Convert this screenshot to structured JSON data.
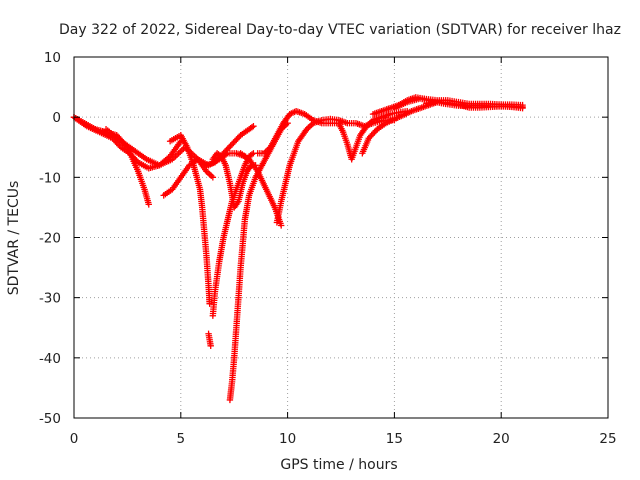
{
  "chart_data": {
    "type": "scatter",
    "title": "Day 322 of 2022, Sidereal Day-to-day VTEC variation (SDTVAR) for receiver lhaz",
    "xlabel": "GPS time / hours",
    "ylabel": "SDTVAR / TECUs",
    "xlim": [
      0,
      25
    ],
    "ylim": [
      -50,
      10
    ],
    "x_ticks": [
      0,
      5,
      10,
      15,
      20,
      25
    ],
    "y_ticks": [
      -50,
      -40,
      -30,
      -20,
      -10,
      0,
      10
    ],
    "x_tick_labels": [
      "0",
      "5",
      "10",
      "15",
      "20",
      "25"
    ],
    "y_tick_labels": [
      "-50",
      "-40",
      "-30",
      "-20",
      "-10",
      "0",
      "10"
    ],
    "grid": true,
    "marker": "+",
    "series": [
      {
        "name": "SDTVAR",
        "color": "#ff0000",
        "tracks": [
          {
            "x": [
              0,
              0.5,
              1.0,
              1.5,
              2.0,
              2.5,
              3.0,
              3.3,
              3.5
            ],
            "y": [
              0,
              -1,
              -2,
              -2.5,
              -3,
              -5,
              -9,
              -12,
              -14.5
            ]
          },
          {
            "x": [
              0,
              0.6,
              1.2,
              1.8,
              2.2,
              2.6,
              3.0,
              3.5,
              4.0,
              4.5,
              5.0
            ],
            "y": [
              0,
              -1.5,
              -2.5,
              -3.5,
              -5,
              -6,
              -7.5,
              -8.5,
              -8,
              -6.5,
              -4
            ]
          },
          {
            "x": [
              1.5,
              2.2,
              2.8,
              3.4,
              4.0,
              4.6,
              5.2,
              5.8,
              6.2,
              6.5
            ],
            "y": [
              -2,
              -4,
              -5.5,
              -7,
              -8,
              -7,
              -5,
              -7,
              -9,
              -10
            ]
          },
          {
            "x": [
              4.2,
              4.6,
              5.0,
              5.4,
              5.8,
              6.3,
              6.8,
              7.2,
              7.6,
              8.0
            ],
            "y": [
              -13,
              -12,
              -10,
              -8,
              -7,
              -8,
              -7,
              -6,
              -6,
              -6.5
            ]
          },
          {
            "x": [
              4.5,
              5.0,
              5.3,
              5.6,
              5.9,
              6.0,
              6.1,
              6.2,
              6.3,
              6.35
            ],
            "y": [
              -4,
              -3,
              -5,
              -8,
              -12,
              -15,
              -19,
              -23,
              -28,
              -31
            ]
          },
          {
            "x": [
              6.3,
              6.35,
              6.4
            ],
            "y": [
              -36,
              -37,
              -38
            ]
          },
          {
            "x": [
              5.8,
              6.2,
              6.6,
              7.0,
              7.4,
              7.8,
              8.2,
              8.4
            ],
            "y": [
              -7,
              -8,
              -7.5,
              -6,
              -4.5,
              -3,
              -2,
              -1.5
            ]
          },
          {
            "x": [
              6.5,
              6.6,
              6.8,
              7.0,
              7.2,
              7.4,
              7.6,
              7.8,
              8.0,
              8.2,
              8.4
            ],
            "y": [
              -33,
              -29,
              -24,
              -20,
              -17,
              -14,
              -12,
              -10,
              -8,
              -6.5,
              -6
            ]
          },
          {
            "x": [
              6.5,
              6.7,
              6.9,
              7.1,
              7.3,
              7.5,
              7.7,
              7.9,
              8.1,
              8.3,
              8.5
            ],
            "y": [
              -7,
              -6,
              -6.5,
              -8,
              -11,
              -15,
              -14,
              -11,
              -9,
              -8,
              -8
            ]
          },
          {
            "x": [
              7.3,
              7.4,
              7.5,
              7.6,
              7.7,
              7.8,
              7.9,
              8.0,
              8.2,
              8.5,
              8.8,
              9.1,
              9.4,
              9.7,
              10.0
            ],
            "y": [
              -47,
              -44,
              -40,
              -35,
              -30,
              -25,
              -21,
              -17,
              -13,
              -10,
              -8,
              -6,
              -4,
              -2,
              -1
            ]
          },
          {
            "x": [
              7.8,
              8.2,
              8.6,
              9.0,
              9.4,
              9.7
            ],
            "y": [
              -6,
              -7,
              -9,
              -12,
              -15,
              -18
            ]
          },
          {
            "x": [
              8.6,
              8.9,
              9.2,
              9.5,
              9.8,
              10.1,
              10.4,
              10.8,
              11.2,
              11.6,
              12.0,
              12.4
            ],
            "y": [
              -6,
              -6,
              -5,
              -3,
              -1,
              0.5,
              1,
              0.5,
              -0.5,
              -1,
              -1,
              -1
            ]
          },
          {
            "x": [
              9.5,
              9.7,
              9.9,
              10.1,
              10.3,
              10.5,
              10.7,
              10.9,
              11.2,
              11.6,
              12.0,
              12.4,
              12.8,
              13.2,
              13.6,
              14.0,
              14.6,
              15.0
            ],
            "y": [
              -17.5,
              -14,
              -11,
              -8,
              -6,
              -4,
              -3,
              -2,
              -1,
              -0.5,
              -0.3,
              -0.5,
              -1,
              -1,
              -1.5,
              -1,
              -0.5,
              -0.5
            ]
          },
          {
            "x": [
              12.4,
              12.6,
              12.8,
              13.0,
              13.2,
              13.4,
              13.7,
              14.0,
              14.4,
              14.8,
              15.2,
              15.6
            ],
            "y": [
              -1,
              -2.5,
              -4.5,
              -7,
              -5,
              -3,
              -1.5,
              -0.5,
              0,
              0.5,
              0.8,
              1
            ]
          },
          {
            "x": [
              13.5,
              13.8,
              14.2,
              14.6,
              15.0,
              15.4,
              15.8,
              16.2,
              16.6,
              17.0
            ],
            "y": [
              -6,
              -3.5,
              -2,
              -1,
              -0.3,
              0.3,
              1,
              1.5,
              2,
              2.5
            ]
          },
          {
            "x": [
              14.0,
              14.4,
              14.8,
              15.2,
              15.6,
              16.0,
              16.5,
              17.0,
              17.5,
              18.0,
              18.5,
              19.0,
              19.5,
              20.0,
              20.5,
              21.0
            ],
            "y": [
              0.5,
              1,
              1.5,
              2,
              2.8,
              3.3,
              3,
              2.8,
              2.8,
              2.5,
              2.2,
              2.2,
              2.2,
              2.1,
              2.1,
              2
            ]
          },
          {
            "x": [
              15.0,
              15.6,
              16.2,
              16.8,
              17.4,
              18.0,
              18.6,
              19.2,
              19.8,
              20.4,
              21.0
            ],
            "y": [
              1.5,
              2.5,
              3.1,
              2.6,
              2.2,
              1.9,
              1.9,
              1.9,
              1.8,
              1.8,
              1.7
            ]
          },
          {
            "x": [
              16.5,
              17.0,
              17.5,
              18.0,
              18.5,
              19.0,
              19.5,
              20.0,
              20.5,
              21.0
            ],
            "y": [
              2.3,
              2.6,
              2.4,
              2.1,
              1.6,
              1.6,
              1.7,
              1.8,
              1.7,
              1.5
            ]
          }
        ]
      }
    ]
  }
}
